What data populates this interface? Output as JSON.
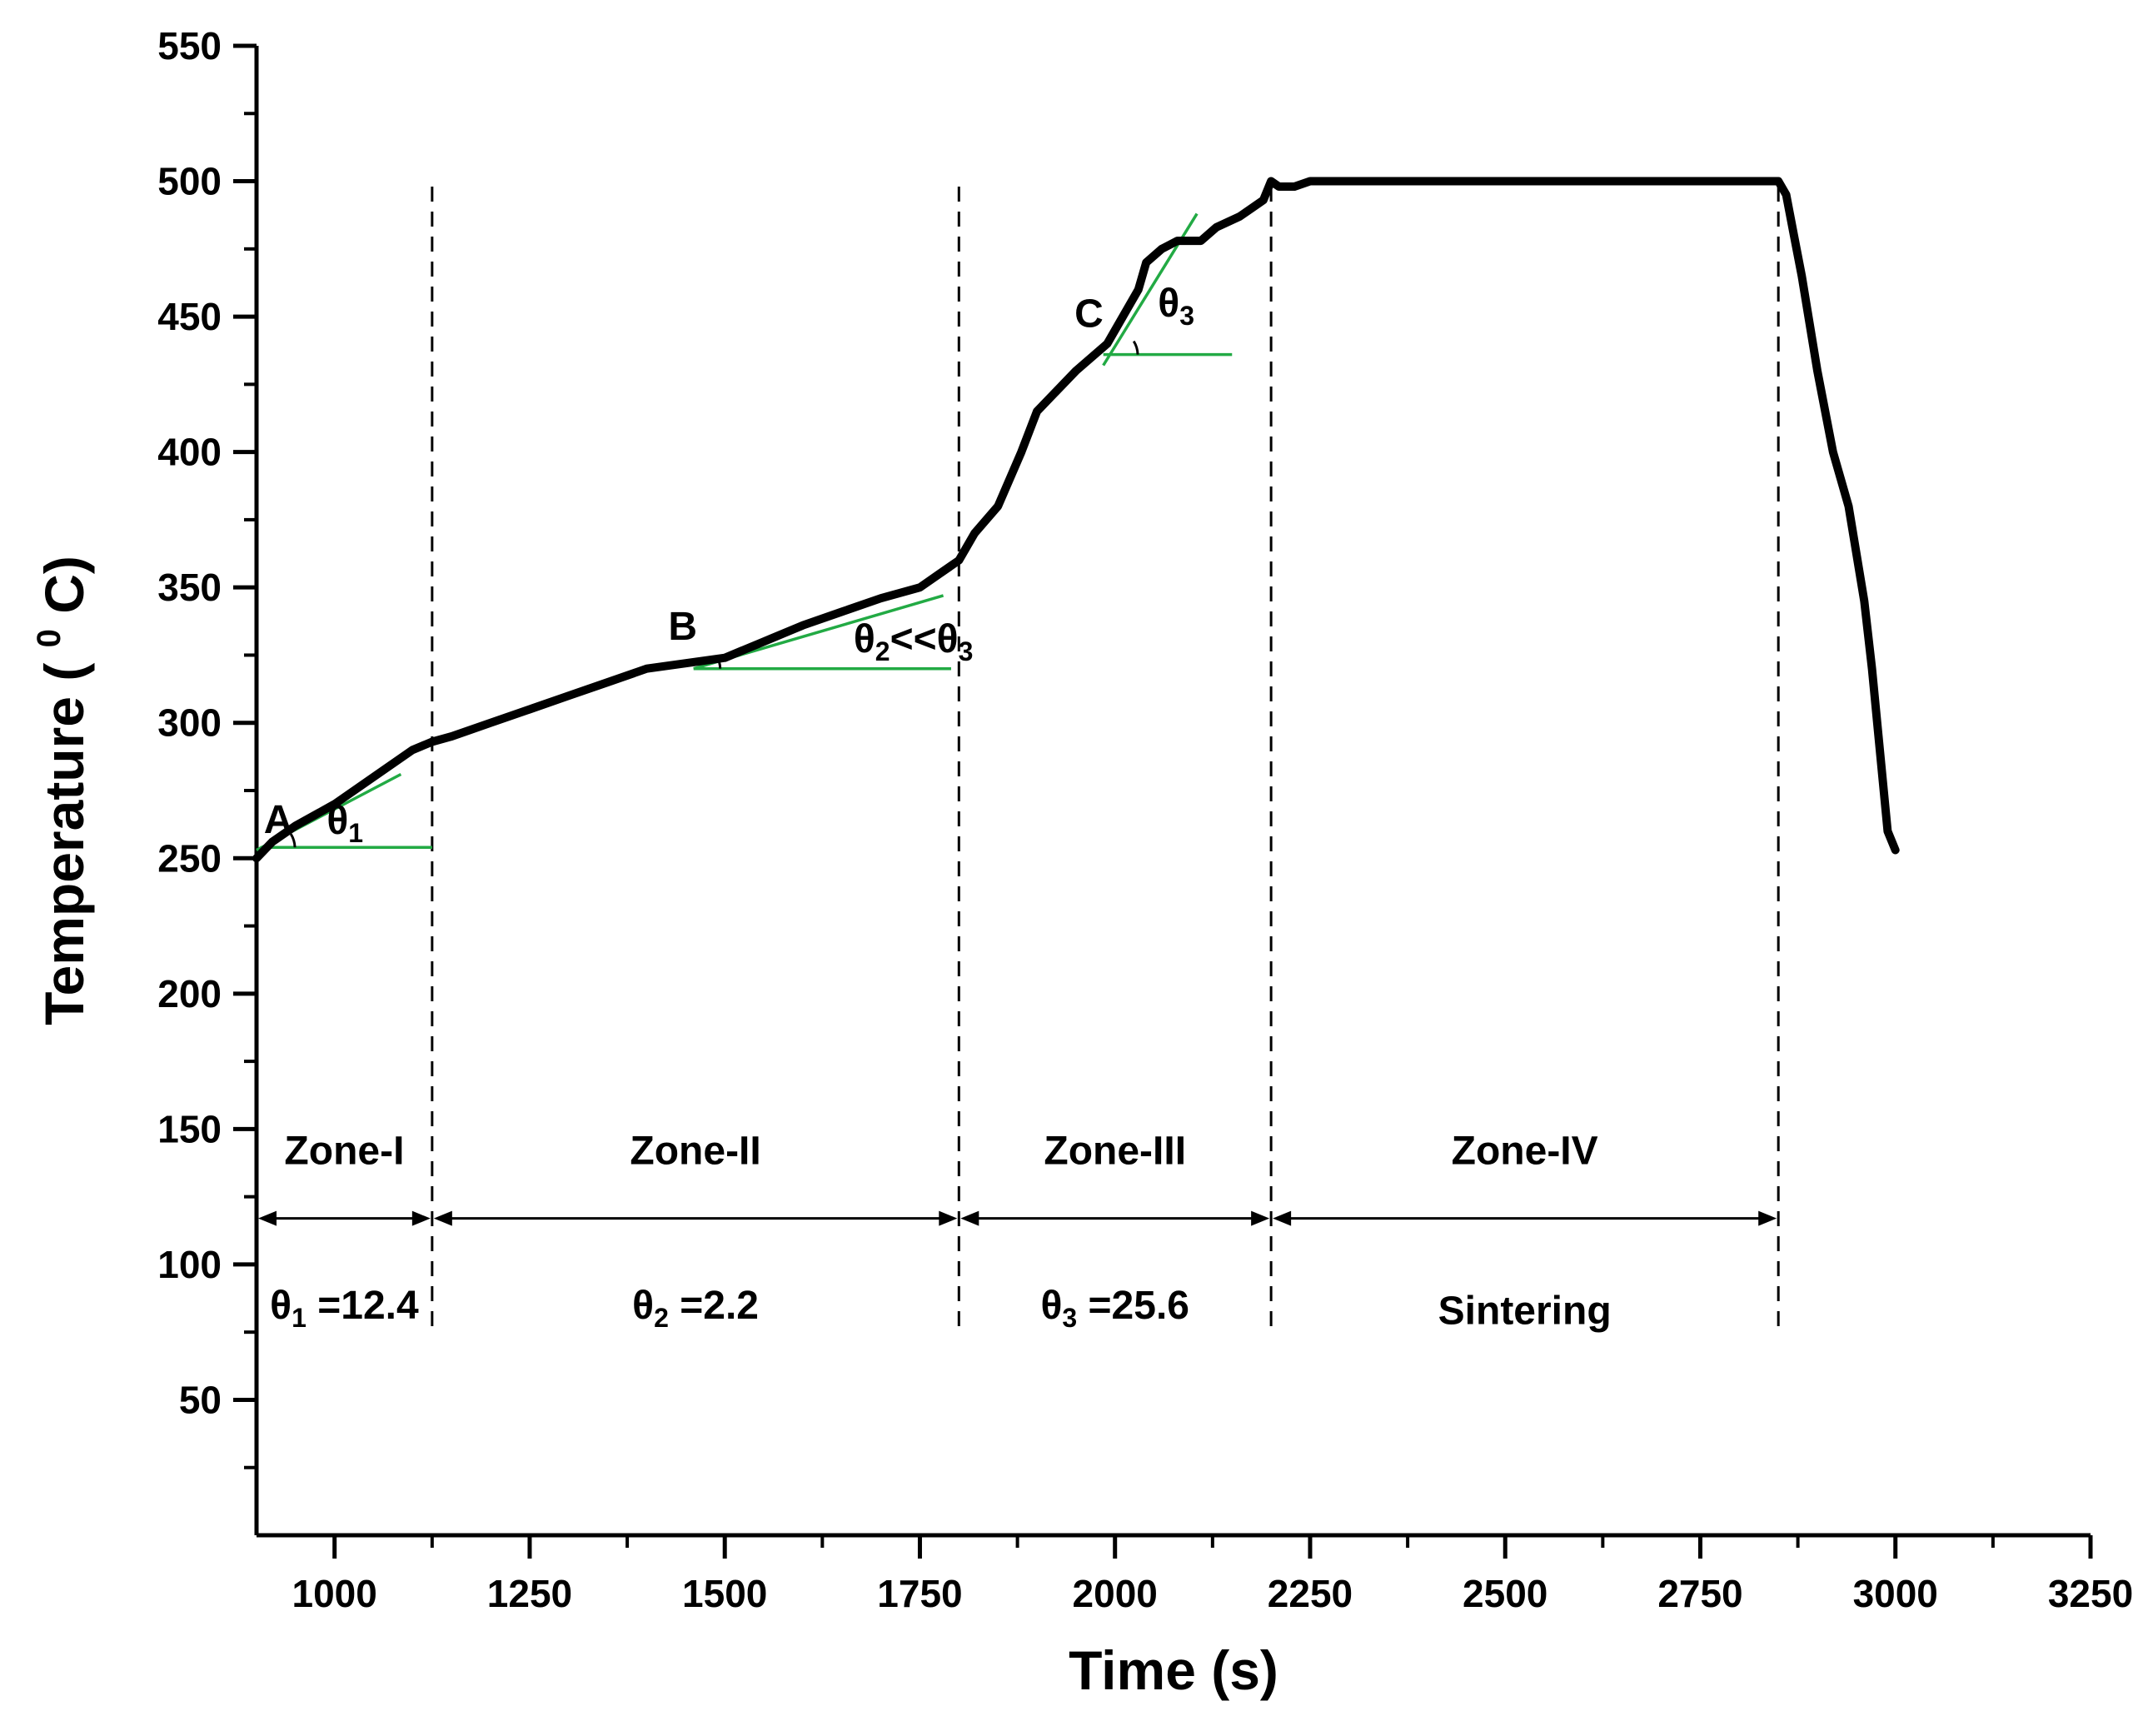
{
  "chart_data": {
    "type": "line",
    "xlabel": "Time (s)",
    "ylabel_main": "Temperature (",
    "ylabel_sup": "0",
    "ylabel_end": " C)",
    "xlim": [
      900,
      3250
    ],
    "ylim": [
      0,
      550
    ],
    "xticks": [
      1000,
      1250,
      1500,
      1750,
      2000,
      2250,
      2500,
      2750,
      3000,
      3250
    ],
    "yticks": [
      50,
      100,
      150,
      200,
      250,
      300,
      350,
      400,
      450,
      500,
      550
    ],
    "series": [
      {
        "name": "Temperature",
        "color": "#000000",
        "x": [
          900,
          920,
          950,
          1000,
          1050,
          1100,
          1125,
          1150,
          1200,
          1250,
          1300,
          1350,
          1400,
          1450,
          1500,
          1550,
          1600,
          1650,
          1700,
          1750,
          1775,
          1800,
          1820,
          1850,
          1880,
          1900,
          1950,
          1990,
          2010,
          2030,
          2040,
          2060,
          2080,
          2110,
          2130,
          2160,
          2190,
          2200,
          2210,
          2230,
          2250,
          2300,
          2350,
          2400,
          2450,
          2500,
          2550,
          2600,
          2650,
          2700,
          2750,
          2800,
          2840,
          2850,
          2860,
          2870,
          2880,
          2900,
          2920,
          2940,
          2960,
          2970,
          2980,
          2990,
          3000
        ],
        "y": [
          250,
          256,
          262,
          270,
          280,
          290,
          293,
          295,
          300,
          305,
          310,
          315,
          320,
          322,
          324,
          330,
          336,
          341,
          346,
          350,
          355,
          360,
          370,
          380,
          400,
          415,
          430,
          440,
          450,
          460,
          470,
          475,
          478,
          478,
          483,
          487,
          493,
          500,
          498,
          498,
          500,
          500,
          500,
          500,
          500,
          500,
          500,
          500,
          500,
          500,
          500,
          500,
          500,
          500,
          495,
          480,
          465,
          430,
          400,
          380,
          345,
          320,
          290,
          260,
          253
        ]
      }
    ],
    "zones": [
      {
        "label": "Zone-I",
        "x_start": 900,
        "x_end": 1125,
        "angle_label_prefix": "θ",
        "angle_label_sub": "1",
        "angle_value_text": " =12.4"
      },
      {
        "label": "Zone-II",
        "x_start": 1125,
        "x_end": 1800,
        "angle_label_prefix": "θ",
        "angle_label_sub": "2",
        "angle_value_text": " =2.2"
      },
      {
        "label": "Zone-III",
        "x_start": 1800,
        "x_end": 2200,
        "angle_label_prefix": "θ",
        "angle_label_sub": "3",
        "angle_value_text": " =25.6"
      },
      {
        "label": "Zone-IV",
        "x_start": 2200,
        "x_end": 2850,
        "note": "Sintering"
      }
    ],
    "zone_boundaries_x": [
      1125,
      1800,
      2200,
      2850
    ],
    "points": [
      {
        "label": "A",
        "x": 920,
        "y": 255
      },
      {
        "label": "B",
        "x": 1465,
        "y": 322
      },
      {
        "label": "C",
        "x": 2010,
        "y": 440
      }
    ],
    "tangent_lines": [
      {
        "color": "#22aa44",
        "x1": 900,
        "y1": 253,
        "x2": 1085,
        "y2": 281
      },
      {
        "color": "#22aa44",
        "x1": 1460,
        "y1": 320,
        "x2": 1780,
        "y2": 347
      },
      {
        "color": "#22aa44",
        "x1": 1985,
        "y1": 432,
        "x2": 2105,
        "y2": 488
      }
    ],
    "baseline_lines": [
      {
        "color": "#22aa44",
        "x1": 905,
        "x2": 1125,
        "y": 254
      },
      {
        "color": "#22aa44",
        "x1": 1460,
        "x2": 1790,
        "y": 320
      },
      {
        "color": "#22aa44",
        "x1": 1985,
        "x2": 2150,
        "y": 436
      }
    ],
    "angle_marks": [
      {
        "prefix": "θ",
        "sub": "1",
        "suffix": "",
        "x": 915,
        "y": 254,
        "label_x": 990,
        "label_y": 259
      },
      {
        "prefix": "θ",
        "sub": "2",
        "suffix": "<<θ",
        "sub2": "3",
        "x": 1460,
        "y": 320,
        "label_x": 1665,
        "label_y": 326
      },
      {
        "prefix": "θ",
        "sub": "3",
        "suffix": "",
        "x": 1995,
        "y": 436,
        "label_x": 2055,
        "label_y": 450
      }
    ]
  }
}
